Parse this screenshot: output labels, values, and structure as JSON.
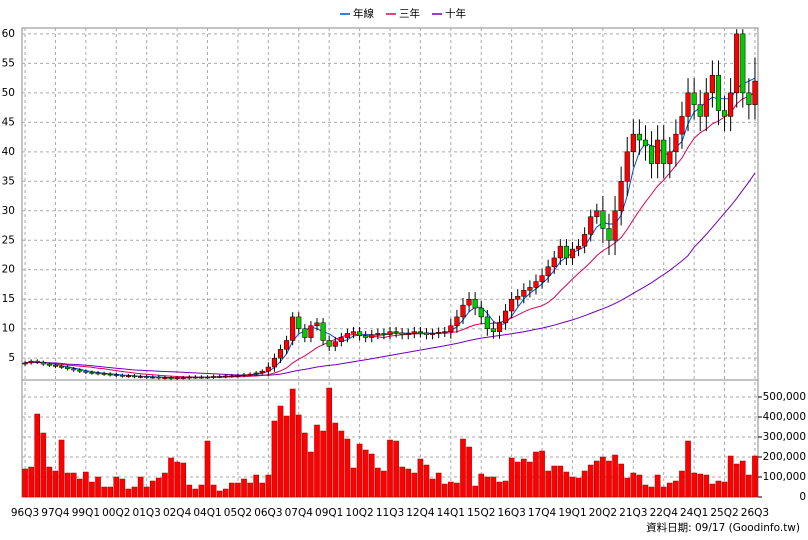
{
  "chart_data": {
    "type": "candlestick",
    "categories": [
      "96Q3",
      null,
      null,
      null,
      null,
      "97Q4",
      null,
      null,
      null,
      null,
      "99Q1",
      null,
      null,
      null,
      null,
      "00Q2",
      null,
      null,
      null,
      null,
      "01Q3",
      null,
      null,
      null,
      null,
      "02Q4",
      null,
      null,
      null,
      null,
      "04Q1",
      null,
      null,
      null,
      null,
      "05Q2",
      null,
      null,
      null,
      null,
      "06Q3",
      null,
      null,
      null,
      null,
      "07Q4",
      null,
      null,
      null,
      null,
      "09Q1",
      null,
      null,
      null,
      null,
      "10Q2",
      null,
      null,
      null,
      null,
      "11Q3",
      null,
      null,
      null,
      null,
      "12Q4",
      null,
      null,
      null,
      null,
      "14Q1",
      null,
      null,
      null,
      null,
      "15Q2",
      null,
      null,
      null,
      null,
      "16Q3",
      null,
      null,
      null,
      null,
      "17Q4",
      null,
      null,
      null,
      null,
      "19Q1",
      null,
      null,
      null,
      null,
      "20Q2",
      null,
      null,
      null,
      null,
      "21Q3",
      null,
      null,
      null,
      null,
      "22Q4",
      null,
      null,
      null,
      null,
      "24Q1",
      null,
      null,
      null,
      null,
      "25Q2",
      null,
      null,
      null,
      null,
      "26Q3"
    ],
    "open": [
      4.0,
      4.2,
      4.5,
      4.3,
      4.0,
      3.8,
      3.6,
      3.5,
      3.2,
      3.0,
      2.8,
      2.6,
      2.5,
      2.4,
      2.3,
      2.2,
      2.1,
      2.0,
      2.0,
      1.9,
      1.9,
      1.8,
      1.8,
      1.7,
      1.7,
      1.6,
      1.7,
      1.7,
      1.8,
      1.8,
      1.8,
      1.8,
      1.9,
      1.9,
      2.0,
      2.0,
      2.1,
      2.2,
      2.3,
      2.5,
      2.8,
      3.5,
      5.0,
      6.5,
      8.0,
      12.0,
      10.0,
      8.5,
      10.5,
      11.0,
      8.0,
      7.0,
      7.8,
      8.5,
      9.2,
      9.5,
      8.8,
      8.5,
      9.0,
      9.2,
      9.0,
      9.5,
      9.3,
      9.0,
      9.2,
      9.5,
      9.3,
      9.0,
      9.2,
      9.4,
      9.5,
      10.5,
      12.0,
      14.0,
      15.0,
      13.5,
      12.0,
      10.0,
      9.5,
      11.0,
      13.0,
      15.0,
      15.5,
      16.5,
      17.0,
      18.0,
      19.0,
      20.5,
      22.0,
      24.0,
      22.0,
      23.5,
      24.0,
      26.0,
      29.0,
      30.0,
      27.0,
      25.0,
      30.0,
      35.0,
      40.0,
      43.0,
      42.0,
      41.0,
      38.0,
      42.0,
      38.0,
      40.0,
      43.0,
      46.0,
      50.0,
      48.0,
      46.0,
      50.0,
      53.0,
      47.0,
      46.0,
      50.0,
      60.0,
      50.0,
      48.0
    ],
    "high": [
      4.5,
      4.8,
      4.8,
      4.6,
      4.3,
      4.1,
      3.9,
      3.8,
      3.5,
      3.3,
      3.1,
      2.9,
      2.8,
      2.7,
      2.6,
      2.5,
      2.4,
      2.3,
      2.3,
      2.2,
      2.2,
      2.1,
      2.1,
      2.0,
      2.0,
      2.0,
      2.0,
      2.1,
      2.1,
      2.1,
      2.1,
      2.2,
      2.2,
      2.3,
      2.3,
      2.4,
      2.5,
      2.6,
      2.8,
      3.1,
      4.3,
      5.8,
      7.3,
      8.8,
      12.8,
      12.8,
      10.8,
      11.3,
      11.8,
      11.8,
      8.8,
      8.6,
      9.3,
      10.0,
      10.3,
      10.3,
      9.6,
      9.8,
      10.0,
      10.0,
      10.3,
      10.3,
      10.1,
      10.0,
      10.3,
      10.3,
      10.1,
      10.0,
      10.2,
      10.3,
      11.7,
      13.2,
      15.2,
      16.2,
      16.2,
      14.7,
      13.2,
      11.2,
      12.2,
      14.2,
      16.2,
      16.7,
      17.7,
      18.2,
      19.2,
      20.2,
      21.7,
      23.2,
      25.2,
      25.2,
      24.7,
      25.2,
      27.2,
      30.2,
      31.2,
      32.5,
      29.5,
      32.5,
      37.5,
      42.5,
      45.5,
      45.5,
      44.5,
      43.5,
      44.5,
      44.5,
      42.5,
      45.5,
      48.5,
      52.5,
      52.5,
      50.5,
      52.5,
      55.5,
      55.5,
      49.5,
      52.5,
      60.8,
      60.8,
      52.5,
      56.0
    ],
    "low": [
      3.7,
      3.9,
      4.0,
      3.7,
      3.5,
      3.3,
      3.2,
      2.9,
      2.7,
      2.5,
      2.3,
      2.2,
      2.1,
      2.0,
      1.9,
      1.8,
      1.7,
      1.7,
      1.6,
      1.6,
      1.5,
      1.5,
      1.4,
      1.4,
      1.3,
      1.3,
      1.4,
      1.4,
      1.5,
      1.5,
      1.5,
      1.5,
      1.6,
      1.6,
      1.7,
      1.7,
      1.8,
      1.9,
      2.0,
      2.2,
      2.0,
      2.7,
      4.2,
      5.7,
      7.2,
      9.2,
      7.7,
      7.7,
      9.7,
      7.2,
      6.2,
      6.2,
      7.0,
      7.7,
      8.4,
      8.0,
      7.7,
      7.7,
      8.2,
      8.2,
      8.2,
      8.5,
      8.2,
      8.2,
      8.4,
      8.5,
      8.2,
      8.2,
      8.4,
      8.6,
      8.3,
      9.3,
      10.8,
      12.8,
      12.3,
      10.8,
      8.8,
      8.3,
      8.3,
      9.8,
      11.8,
      13.8,
      14.3,
      15.3,
      15.8,
      16.8,
      17.8,
      19.3,
      20.8,
      20.8,
      20.8,
      22.3,
      22.8,
      24.8,
      27.8,
      24.5,
      22.5,
      22.5,
      27.5,
      32.5,
      37.5,
      39.5,
      38.5,
      35.5,
      35.5,
      35.5,
      35.5,
      37.5,
      40.5,
      43.5,
      45.5,
      43.5,
      43.5,
      47.5,
      44.5,
      43.5,
      43.5,
      47.5,
      47.5,
      45.5,
      45.5
    ],
    "close": [
      4.2,
      4.5,
      4.3,
      4.0,
      3.8,
      3.6,
      3.5,
      3.2,
      3.0,
      2.8,
      2.6,
      2.5,
      2.4,
      2.3,
      2.2,
      2.1,
      2.0,
      2.0,
      1.9,
      1.9,
      1.8,
      1.8,
      1.7,
      1.7,
      1.6,
      1.7,
      1.7,
      1.8,
      1.8,
      1.8,
      1.8,
      1.9,
      1.9,
      2.0,
      2.0,
      2.1,
      2.2,
      2.3,
      2.5,
      2.8,
      3.5,
      5.0,
      6.5,
      8.0,
      12.0,
      10.0,
      8.5,
      10.5,
      11.0,
      8.0,
      7.0,
      7.8,
      8.5,
      9.2,
      9.5,
      8.8,
      8.5,
      9.0,
      9.2,
      9.0,
      9.5,
      9.3,
      9.0,
      9.2,
      9.5,
      9.3,
      9.0,
      9.2,
      9.4,
      9.5,
      10.5,
      12.0,
      14.0,
      15.0,
      13.5,
      12.0,
      10.0,
      9.5,
      11.0,
      13.0,
      15.0,
      15.5,
      16.5,
      17.0,
      18.0,
      19.0,
      20.5,
      22.0,
      24.0,
      22.0,
      23.5,
      24.0,
      26.0,
      29.0,
      30.0,
      27.0,
      25.0,
      30.0,
      35.0,
      40.0,
      43.0,
      42.0,
      41.0,
      38.0,
      42.0,
      38.0,
      40.0,
      43.0,
      46.0,
      50.0,
      48.0,
      46.0,
      50.0,
      53.0,
      47.0,
      46.0,
      50.0,
      60.0,
      50.0,
      48.0,
      52.0
    ],
    "up_color": "#ff0000",
    "down_color": "#00cc00",
    "ylim": [
      1.3,
      61
    ],
    "yticks": [
      5,
      10,
      15,
      20,
      25,
      30,
      35,
      40,
      45,
      50,
      55,
      60
    ],
    "grid": true,
    "series": [
      {
        "name": "年線",
        "color": "#0050d0",
        "values": [
          4.2,
          4.3,
          4.3,
          4.25,
          4.15,
          3.93,
          3.73,
          3.53,
          3.33,
          3.13,
          2.9,
          2.73,
          2.58,
          2.45,
          2.35,
          2.25,
          2.15,
          2.08,
          2.0,
          1.95,
          1.9,
          1.85,
          1.8,
          1.75,
          1.7,
          1.68,
          1.68,
          1.7,
          1.75,
          1.78,
          1.8,
          1.83,
          1.85,
          1.9,
          1.95,
          2.0,
          2.08,
          2.15,
          2.28,
          2.45,
          2.78,
          3.4,
          4.45,
          5.75,
          7.88,
          9.13,
          9.63,
          10.25,
          10.0,
          9.5,
          9.13,
          8.45,
          7.83,
          8.13,
          8.75,
          9.0,
          9.0,
          8.95,
          8.88,
          8.93,
          9.18,
          9.25,
          9.2,
          9.25,
          9.25,
          9.25,
          9.25,
          9.25,
          9.23,
          9.28,
          9.65,
          10.35,
          11.5,
          12.88,
          13.63,
          13.63,
          12.63,
          11.25,
          10.63,
          10.88,
          12.13,
          13.63,
          15.0,
          16.0,
          16.75,
          17.63,
          18.63,
          19.88,
          21.38,
          22.13,
          22.88,
          23.38,
          23.88,
          25.63,
          27.25,
          28.0,
          27.75,
          27.75,
          29.25,
          32.5,
          37.0,
          40.0,
          41.5,
          41.0,
          40.75,
          39.75,
          39.5,
          40.75,
          41.75,
          44.75,
          46.75,
          47.5,
          48.5,
          49.25,
          49.0,
          49.0,
          49.0,
          50.75,
          51.5,
          52.0,
          52.5
        ]
      },
      {
        "name": "三年",
        "color": "#e0005a",
        "values": [
          4.2,
          4.3,
          4.3,
          4.25,
          4.15,
          4.05,
          3.95,
          3.85,
          3.75,
          3.65,
          3.55,
          3.45,
          3.3,
          3.2,
          3.05,
          2.9,
          2.75,
          2.6,
          2.48,
          2.37,
          2.27,
          2.18,
          2.1,
          2.03,
          1.96,
          1.9,
          1.85,
          1.82,
          1.8,
          1.78,
          1.77,
          1.77,
          1.78,
          1.8,
          1.82,
          1.85,
          1.88,
          1.93,
          1.98,
          2.08,
          2.22,
          2.48,
          2.85,
          3.35,
          4.2,
          4.85,
          5.38,
          6.08,
          6.8,
          7.3,
          7.73,
          8.2,
          8.62,
          8.92,
          9.0,
          9.07,
          8.8,
          8.72,
          8.61,
          8.51,
          8.74,
          8.86,
          8.98,
          9.04,
          9.12,
          9.13,
          9.13,
          9.17,
          9.22,
          9.23,
          9.3,
          9.5,
          9.85,
          10.3,
          10.65,
          10.85,
          10.9,
          10.9,
          11.05,
          11.4,
          11.83,
          12.3,
          12.85,
          13.3,
          13.6,
          13.9,
          14.45,
          15.3,
          16.4,
          17.4,
          18.45,
          19.4,
          20.3,
          21.3,
          22.4,
          23.25,
          23.85,
          24.55,
          25.45,
          26.85,
          28.5,
          30.05,
          31.5,
          32.85,
          34.2,
          35.2,
          36.45,
          37.7,
          38.95,
          40.75,
          42.3,
          43.25,
          43.85,
          44.75,
          45.25,
          45.9,
          46.6,
          48.15,
          49.0,
          49.4,
          50.1
        ]
      },
      {
        "name": "十年",
        "color": "#7000c0",
        "values": [
          4.2,
          4.3,
          4.3,
          4.3,
          4.2,
          4.2,
          4.1,
          4.0,
          3.95,
          3.9,
          3.8,
          3.7,
          3.6,
          3.5,
          3.4,
          3.3,
          3.2,
          3.1,
          3.0,
          2.95,
          2.9,
          2.85,
          2.8,
          2.75,
          2.7,
          2.65,
          2.6,
          2.55,
          2.5,
          2.45,
          2.4,
          2.35,
          2.3,
          2.25,
          2.2,
          2.15,
          2.12,
          2.1,
          2.1,
          2.1,
          2.1,
          2.2,
          2.3,
          2.5,
          2.75,
          2.95,
          3.1,
          3.3,
          3.5,
          3.65,
          3.77,
          3.9,
          4.05,
          4.22,
          4.4,
          4.57,
          4.74,
          4.92,
          5.1,
          5.28,
          5.46,
          5.65,
          5.83,
          6.02,
          6.2,
          6.38,
          6.56,
          6.74,
          6.92,
          7.1,
          7.3,
          7.5,
          7.75,
          8.0,
          8.2,
          8.4,
          8.55,
          8.7,
          8.85,
          9.0,
          9.15,
          9.3,
          9.5,
          9.7,
          9.9,
          10.1,
          10.35,
          10.6,
          10.9,
          11.2,
          11.5,
          11.85,
          12.2,
          12.6,
          13.0,
          13.4,
          13.8,
          14.3,
          14.8,
          15.4,
          16.0,
          16.6,
          17.2,
          17.8,
          18.5,
          19.2,
          19.9,
          20.7,
          21.5,
          22.4,
          23.8,
          24.9,
          26.0,
          27.2,
          28.4,
          29.6,
          30.8,
          32.1,
          33.5,
          34.9,
          36.4
        ]
      }
    ],
    "volume": {
      "color": "#ff0000",
      "ylim": [
        0,
        585000
      ],
      "yticks": [
        0,
        {
          "value": 100000,
          "label": "100,000"
        },
        {
          "value": 200000,
          "label": "200,000"
        },
        {
          "value": 300000,
          "label": "300,000"
        },
        {
          "value": 400000,
          "label": "400,000"
        },
        {
          "value": 500000,
          "label": "500,000"
        }
      ],
      "values": [
        140000,
        150000,
        415000,
        320000,
        150000,
        130000,
        285000,
        120000,
        120000,
        90000,
        125000,
        75000,
        100000,
        50000,
        50000,
        100000,
        90000,
        40000,
        50000,
        100000,
        50000,
        80000,
        95000,
        120000,
        195000,
        175000,
        170000,
        60000,
        40000,
        60000,
        280000,
        60000,
        30000,
        40000,
        70000,
        70000,
        90000,
        70000,
        110000,
        70000,
        110000,
        380000,
        455000,
        405000,
        540000,
        410000,
        320000,
        225000,
        360000,
        330000,
        545000,
        370000,
        330000,
        290000,
        145000,
        265000,
        235000,
        215000,
        145000,
        130000,
        285000,
        280000,
        150000,
        140000,
        120000,
        190000,
        160000,
        90000,
        120000,
        65000,
        75000,
        70000,
        290000,
        250000,
        55000,
        115000,
        100000,
        100000,
        75000,
        80000,
        195000,
        175000,
        190000,
        175000,
        225000,
        230000,
        130000,
        155000,
        155000,
        125000,
        100000,
        95000,
        130000,
        160000,
        180000,
        200000,
        180000,
        210000,
        165000,
        95000,
        120000,
        110000,
        60000,
        50000,
        110000,
        50000,
        70000,
        80000,
        130000,
        280000,
        120000,
        115000,
        110000,
        65000,
        80000,
        75000,
        205000,
        165000,
        180000,
        110000,
        205000
      ]
    },
    "footer": "資料日期: 09/17  (Goodinfo.tw)"
  }
}
